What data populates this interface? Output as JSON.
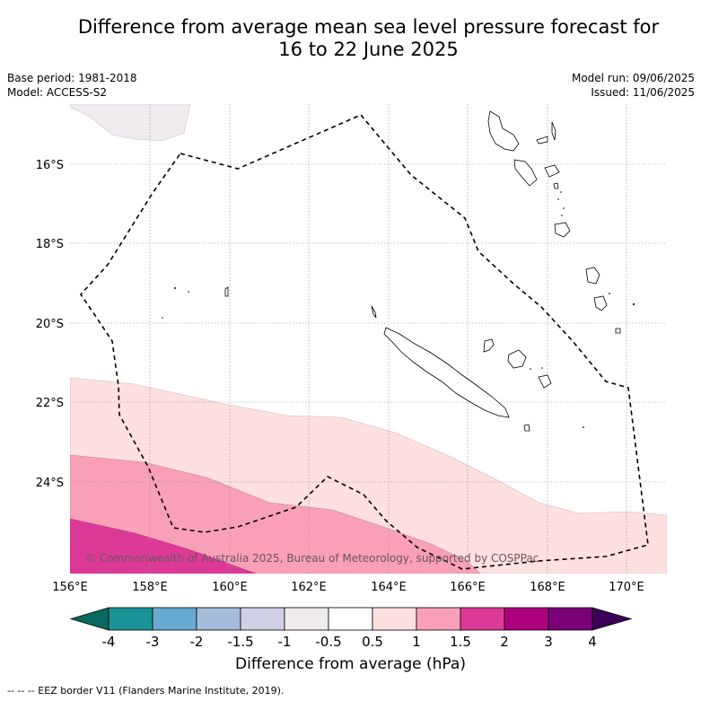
{
  "title": {
    "line1": "Difference from average mean sea level pressure forecast for",
    "line2": "16 to 22 June 2025"
  },
  "meta": {
    "base_period": "Base period: 1981-2018",
    "model": "Model: ACCESS-S2",
    "model_run": "Model run: 09/06/2025",
    "issued": "Issued: 11/06/2025"
  },
  "map": {
    "lon_labels": [
      "156°E",
      "158°E",
      "160°E",
      "162°E",
      "164°E",
      "166°E",
      "168°E",
      "170°E"
    ],
    "lat_labels": [
      "16°S",
      "18°S",
      "20°S",
      "22°S",
      "24°S"
    ],
    "copyright": "© Commonwealth of Australia 2025, Bureau of Meteorology, supported by COSPPac"
  },
  "colorbar": {
    "labels": [
      "-4",
      "-3",
      "-2",
      "-1.5",
      "-1",
      "-0.5",
      "0.5",
      "1",
      "1.5",
      "2",
      "3",
      "4"
    ],
    "colors": [
      "#1a9396",
      "#66a9d1",
      "#a7bcdb",
      "#cfd0e5",
      "#efebef",
      "#ffffff",
      "#fde0df",
      "#f9a0b8",
      "#dd3a97",
      "#ae017e",
      "#7a0177"
    ],
    "low_color": "#0b6a5f",
    "high_color": "#3b0058",
    "title": "Difference from average (hPa)"
  },
  "footnote": "-- -- -- EEZ border V11 (Flanders Marine Institute, 2019)."
}
